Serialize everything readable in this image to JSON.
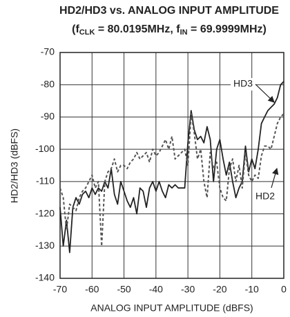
{
  "chart_data": {
    "type": "line",
    "title": "HD2/HD3 vs. ANALOG INPUT AMPLITUDE",
    "subtitle": [
      "(f",
      "CLK",
      " = 80.0195MHz, f",
      "IN",
      " = 69.9999MHz)"
    ],
    "x_label": "ANALOG INPUT AMPLITUDE (dBFS)",
    "y_label": "HD2/HD3 (dBFS)",
    "x": [
      -70,
      -69,
      -68,
      -67,
      -66,
      -65,
      -64,
      -63,
      -62,
      -61,
      -60,
      -59,
      -58,
      -57,
      -56,
      -55,
      -54,
      -53,
      -52,
      -51,
      -50,
      -49,
      -48,
      -47,
      -46,
      -45,
      -44,
      -43,
      -42,
      -41,
      -40,
      -39,
      -38,
      -37,
      -36,
      -35,
      -34,
      -33,
      -32,
      -31,
      -30,
      -29,
      -28,
      -27,
      -26,
      -25,
      -24,
      -23,
      -22,
      -21,
      -20,
      -19,
      -18,
      -17,
      -16,
      -15,
      -14,
      -13,
      -12,
      -11,
      -10,
      -9,
      -8,
      -7,
      -6,
      -5,
      -4,
      -3,
      -2,
      -1,
      0
    ],
    "series": [
      {
        "name": "HD3",
        "color": "#222222",
        "dashed": false,
        "values": [
          -118,
          -130,
          -122,
          -132,
          -118,
          -115,
          -117,
          -114,
          -113,
          -115,
          -112,
          -114,
          -112,
          -113,
          -110,
          -112,
          -106,
          -114,
          -117,
          -110,
          -113,
          -116,
          -118,
          -115,
          -120,
          -112,
          -113,
          -118,
          -112,
          -110,
          -113,
          -110,
          -113,
          -115,
          -111,
          -112,
          -111,
          -112,
          -112,
          -112,
          -98,
          -88,
          -94,
          -97,
          -96,
          -98,
          -93,
          -97,
          -110,
          -100,
          -97,
          -103,
          -108,
          -104,
          -110,
          -115,
          -112,
          -110,
          -99,
          -107,
          -103,
          -106,
          -100,
          -92,
          -90,
          -88,
          -87,
          -86,
          -84,
          -80,
          -79
        ]
      },
      {
        "name": "HD2",
        "color": "#555555",
        "dashed": true,
        "values": [
          -112,
          -115,
          -125,
          -117,
          -118,
          -119,
          -115,
          -113,
          -112,
          -110,
          -108,
          -112,
          -110,
          -130,
          -110,
          -107,
          -106,
          -103,
          -107,
          -105,
          -105,
          -106,
          -104,
          -103,
          -101,
          -103,
          -102,
          -101,
          -104,
          -100,
          -102,
          -101,
          -99,
          -97,
          -100,
          -96,
          -103,
          -102,
          -101,
          -100,
          -105,
          -89,
          -95,
          -103,
          -100,
          -110,
          -115,
          -101,
          -106,
          -104,
          -112,
          -115,
          -116,
          -106,
          -103,
          -110,
          -105,
          -112,
          -101,
          -108,
          -110,
          -108,
          -109,
          -102,
          -99,
          -99,
          -100,
          -96,
          -92,
          -90,
          -89
        ]
      }
    ],
    "xlim": [
      -70,
      0
    ],
    "ylim": [
      -140,
      -70
    ],
    "xticks": [
      -70,
      -60,
      -50,
      -40,
      -30,
      -20,
      -10,
      0
    ],
    "yticks": [
      -70,
      -80,
      -90,
      -100,
      -110,
      -120,
      -130,
      -140
    ],
    "grid": true
  }
}
